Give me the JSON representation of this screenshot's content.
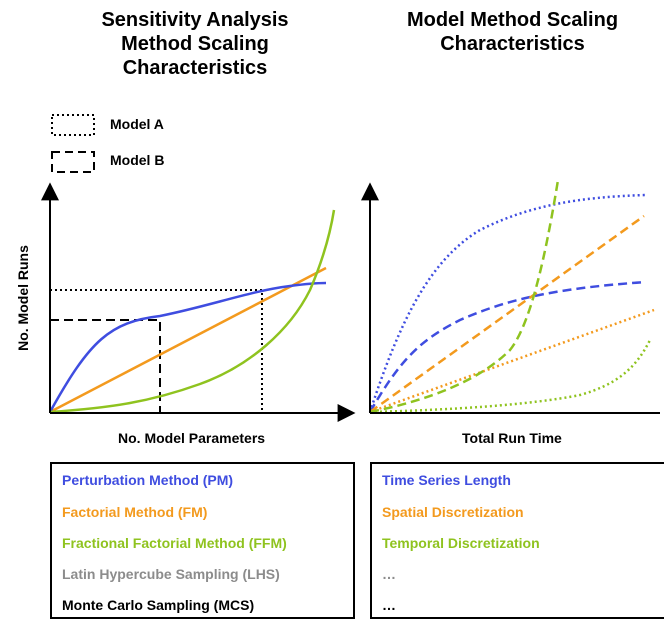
{
  "left_panel": {
    "title_lines": [
      "Sensitivity Analysis",
      "Method Scaling",
      "Characteristics"
    ],
    "y_axis_label": "No. Model Runs",
    "x_axis_label": "No. Model Parameters",
    "key": {
      "model_a": "Model A",
      "model_b": "Model B"
    },
    "methods": [
      {
        "label": "Perturbation Method (PM)",
        "color": "#3f4de0"
      },
      {
        "label": "Factorial Method (FM)",
        "color": "#f39a1e"
      },
      {
        "label": "Fractional Factorial Method (FFM)",
        "color": "#8fc31f"
      },
      {
        "label": "Latin Hypercube Sampling (LHS)",
        "color": "#8c8c8c"
      },
      {
        "label": "Monte Carlo Sampling (MCS)",
        "color": "#000000"
      }
    ]
  },
  "right_panel": {
    "title_lines": [
      "Model Method Scaling",
      "Characteristics"
    ],
    "x_axis_label": "Total Run Time",
    "factors": [
      {
        "label": "Time Series Length",
        "color": "#3f4de0"
      },
      {
        "label": "Spatial Discretization",
        "color": "#f39a1e"
      },
      {
        "label": "Temporal Discretization",
        "color": "#8fc31f"
      },
      {
        "label": "…",
        "color": "#8c8c8c"
      },
      {
        "label": "…",
        "color": "#000000"
      }
    ]
  }
}
